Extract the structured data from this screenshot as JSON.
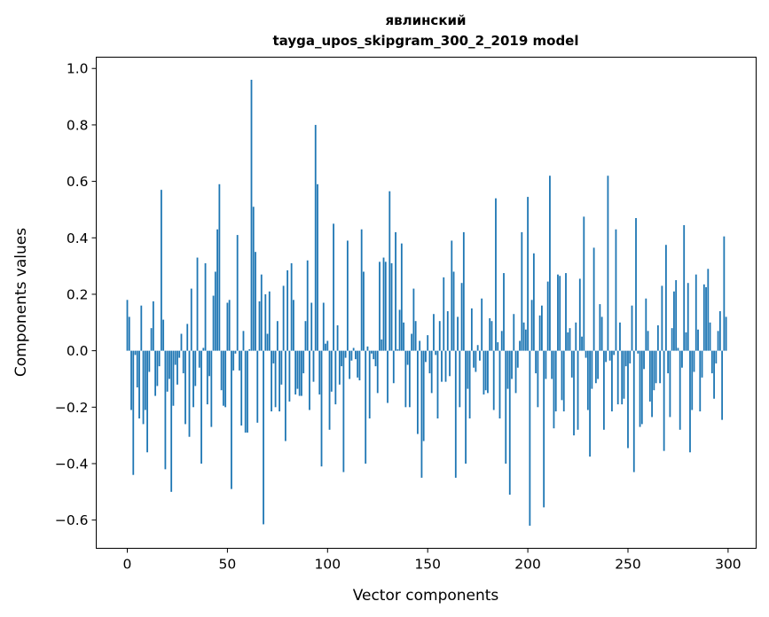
{
  "chart_data": {
    "type": "bar",
    "title": "явлинский",
    "subtitle": "tayga_upos_skipgram_300_2_2019 model",
    "xlabel": "Vector components",
    "ylabel": "Components values",
    "xlim": [
      -15.5,
      314
    ],
    "ylim": [
      -0.7,
      1.04
    ],
    "xticks": [
      0,
      50,
      100,
      150,
      200,
      250,
      300
    ],
    "xtick_labels": [
      "0",
      "50",
      "100",
      "150",
      "200",
      "250",
      "300"
    ],
    "yticks": [
      -0.6,
      -0.4,
      -0.2,
      0.0,
      0.2,
      0.4,
      0.6,
      0.8,
      1.0
    ],
    "ytick_labels": [
      "−0.6",
      "−0.4",
      "−0.2",
      "0.0",
      "0.2",
      "0.4",
      "0.6",
      "0.8",
      "1.0"
    ],
    "grid": false,
    "bar_color": "#1f77b4",
    "values": [
      0.18,
      0.12,
      -0.21,
      -0.44,
      -0.015,
      -0.13,
      -0.24,
      0.16,
      -0.26,
      -0.21,
      -0.36,
      -0.075,
      0.08,
      0.175,
      -0.16,
      -0.125,
      -0.055,
      0.57,
      0.11,
      -0.42,
      -0.145,
      -0.1,
      -0.5,
      -0.195,
      -0.05,
      -0.12,
      -0.025,
      0.06,
      -0.08,
      -0.26,
      0.095,
      -0.305,
      0.22,
      -0.2,
      -0.125,
      0.33,
      -0.06,
      -0.4,
      0.01,
      0.31,
      -0.19,
      -0.09,
      -0.27,
      0.195,
      0.28,
      0.43,
      0.59,
      -0.14,
      -0.195,
      -0.2,
      0.17,
      0.18,
      -0.49,
      -0.07,
      -0.01,
      0.41,
      -0.07,
      -0.265,
      0.07,
      -0.29,
      -0.29,
      0.005,
      0.96,
      0.51,
      0.35,
      -0.255,
      0.175,
      0.27,
      -0.615,
      0.2,
      0.06,
      0.21,
      -0.215,
      -0.045,
      -0.2,
      0.105,
      -0.215,
      -0.12,
      0.23,
      -0.32,
      0.285,
      -0.18,
      0.31,
      0.18,
      -0.155,
      -0.135,
      -0.16,
      -0.16,
      -0.08,
      0.105,
      0.32,
      -0.21,
      0.17,
      -0.11,
      0.8,
      0.59,
      -0.155,
      -0.41,
      0.17,
      0.025,
      0.035,
      -0.28,
      -0.145,
      0.45,
      -0.19,
      0.09,
      -0.12,
      -0.055,
      -0.43,
      -0.025,
      0.39,
      -0.1,
      -0.035,
      0.01,
      -0.03,
      -0.095,
      -0.105,
      0.43,
      0.28,
      -0.4,
      0.015,
      -0.24,
      -0.01,
      -0.03,
      -0.055,
      -0.15,
      0.315,
      0.04,
      0.33,
      0.315,
      -0.185,
      0.565,
      0.31,
      -0.115,
      0.42,
      0.005,
      0.145,
      0.38,
      0.1,
      -0.2,
      -0.05,
      -0.2,
      0.06,
      0.22,
      0.105,
      -0.295,
      0.035,
      -0.45,
      -0.32,
      -0.04,
      0.055,
      -0.08,
      -0.15,
      0.13,
      -0.015,
      -0.24,
      0.105,
      -0.11,
      0.26,
      -0.11,
      0.14,
      -0.09,
      0.39,
      0.28,
      -0.45,
      0.12,
      -0.2,
      0.24,
      0.42,
      -0.4,
      -0.135,
      -0.24,
      0.15,
      -0.06,
      -0.075,
      0.02,
      -0.035,
      0.185,
      -0.155,
      -0.14,
      -0.15,
      0.115,
      0.105,
      -0.21,
      0.54,
      0.03,
      -0.24,
      0.07,
      0.275,
      -0.4,
      -0.135,
      -0.51,
      -0.1,
      0.13,
      -0.15,
      -0.06,
      0.035,
      0.42,
      0.1,
      0.075,
      0.545,
      -0.62,
      0.18,
      0.345,
      -0.08,
      -0.2,
      0.125,
      0.16,
      -0.555,
      -0.1,
      0.245,
      0.62,
      -0.1,
      -0.275,
      -0.215,
      0.27,
      0.265,
      -0.175,
      -0.215,
      0.275,
      0.065,
      0.08,
      -0.095,
      -0.3,
      0.1,
      -0.28,
      0.255,
      0.05,
      0.475,
      -0.025,
      -0.21,
      -0.375,
      -0.135,
      0.365,
      -0.115,
      -0.1,
      0.165,
      0.12,
      -0.28,
      -0.04,
      0.62,
      -0.035,
      -0.215,
      -0.015,
      0.43,
      -0.19,
      0.1,
      -0.19,
      -0.17,
      -0.055,
      -0.345,
      -0.045,
      0.16,
      -0.43,
      0.47,
      -0.01,
      -0.27,
      -0.26,
      -0.065,
      0.185,
      0.07,
      -0.18,
      -0.235,
      -0.14,
      -0.115,
      0.09,
      -0.115,
      0.23,
      -0.355,
      0.375,
      -0.08,
      -0.235,
      0.08,
      0.21,
      0.25,
      0.01,
      -0.28,
      -0.06,
      0.445,
      0.065,
      0.24,
      -0.36,
      -0.21,
      -0.075,
      0.27,
      0.075,
      -0.215,
      -0.095,
      0.235,
      0.225,
      0.29,
      0.1,
      -0.08,
      -0.17,
      -0.045,
      0.07,
      0.14,
      -0.245,
      0.405,
      0.12
    ]
  }
}
